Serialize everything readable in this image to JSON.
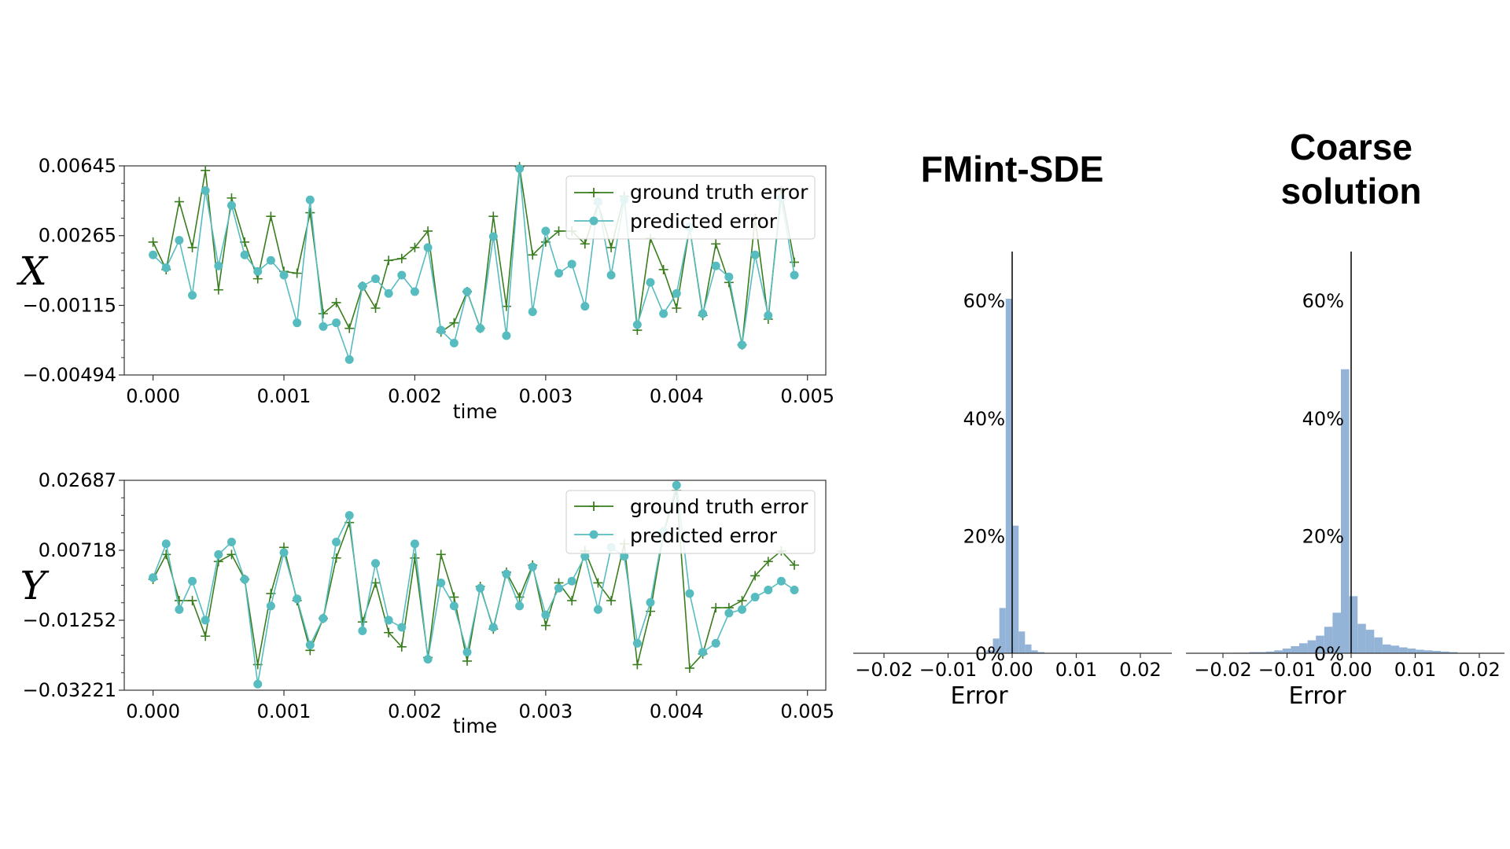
{
  "chart_data": [
    {
      "type": "line",
      "id": "x",
      "var_label": "X",
      "xlabel": "time",
      "ylabel": "",
      "xlim": [
        -0.00022,
        0.00514
      ],
      "ylim": [
        -0.00494,
        0.00645
      ],
      "xticks": [
        {
          "v": 0.0,
          "label": "0.000"
        },
        {
          "v": 0.001,
          "label": "0.001"
        },
        {
          "v": 0.002,
          "label": "0.002"
        },
        {
          "v": 0.003,
          "label": "0.003"
        },
        {
          "v": 0.004,
          "label": "0.004"
        },
        {
          "v": 0.005,
          "label": "0.005"
        }
      ],
      "yticks": [
        {
          "v": 0.00645,
          "label": "0.00645"
        },
        {
          "v": 0.00265,
          "label": "0.00265"
        },
        {
          "v": -0.00115,
          "label": "−0.00115"
        },
        {
          "v": -0.00494,
          "label": "−0.00494"
        }
      ],
      "legend_position": "top-right",
      "series": [
        {
          "name": "ground truth error",
          "marker": "plus",
          "color": "#3a7d1e",
          "values": [
            0.0023,
            0.0008,
            0.0045,
            0.002,
            0.0062,
            -0.0003,
            0.0047,
            0.0023,
            0.0003,
            0.0037,
            0.0007,
            0.0006,
            0.0039,
            -0.0016,
            -0.001,
            -0.0024,
            -0.0001,
            -0.0013,
            0.0013,
            0.0014,
            0.002,
            0.0029,
            -0.0026,
            -0.0021,
            -0.0004,
            -0.0024,
            0.0037,
            -0.0012,
            0.0064,
            0.0016,
            0.0023,
            0.0029,
            0.0029,
            0.0022,
            0.0044,
            0.002,
            0.0048,
            -0.0025,
            0.0025,
            0.0008,
            -0.0013,
            0.0031,
            -0.0017,
            0.0022,
            0.0001,
            -0.0033,
            0.0036,
            -0.0019,
            0.0051,
            0.0012
          ]
        },
        {
          "name": "predicted error",
          "marker": "circle",
          "color": "#57bcbf",
          "values": [
            0.0016,
            0.0009,
            0.0024,
            -0.0006,
            0.0051,
            0.001,
            0.0043,
            0.0016,
            0.0007,
            0.0013,
            0.0005,
            -0.0021,
            0.0046,
            -0.0023,
            -0.0021,
            -0.0041,
            -0.0001,
            0.0003,
            -0.0005,
            0.0005,
            -0.0004,
            0.002,
            -0.0025,
            -0.0032,
            -0.0004,
            -0.0024,
            0.0026,
            -0.0028,
            0.0063,
            -0.0015,
            0.0029,
            0.0006,
            0.0011,
            -0.0012,
            0.0045,
            0.0005,
            0.0046,
            -0.0022,
            0.0001,
            -0.0016,
            -0.0005,
            0.0031,
            -0.0016,
            0.001,
            0.0004,
            -0.0033,
            0.0016,
            -0.0017,
            0.0047,
            0.0005
          ]
        }
      ]
    },
    {
      "type": "line",
      "id": "y",
      "var_label": "Y",
      "xlabel": "time",
      "ylabel": "",
      "xlim": [
        -0.00022,
        0.00514
      ],
      "ylim": [
        -0.03221,
        0.02687
      ],
      "xticks": [
        {
          "v": 0.0,
          "label": "0.000"
        },
        {
          "v": 0.001,
          "label": "0.001"
        },
        {
          "v": 0.002,
          "label": "0.002"
        },
        {
          "v": 0.003,
          "label": "0.003"
        },
        {
          "v": 0.004,
          "label": "0.004"
        },
        {
          "v": 0.005,
          "label": "0.005"
        }
      ],
      "yticks": [
        {
          "v": 0.02687,
          "label": "0.02687"
        },
        {
          "v": 0.00718,
          "label": "0.00718"
        },
        {
          "v": -0.01252,
          "label": "−0.01252"
        },
        {
          "v": -0.03221,
          "label": "−0.03221"
        }
      ],
      "legend_position": "top-right",
      "series": [
        {
          "name": "ground truth error",
          "marker": "plus",
          "color": "#3a7d1e",
          "values": [
            -0.001,
            0.006,
            -0.007,
            -0.007,
            -0.017,
            0.004,
            0.006,
            -0.001,
            -0.025,
            -0.005,
            0.008,
            -0.007,
            -0.021,
            -0.012,
            0.005,
            0.015,
            -0.013,
            -0.002,
            -0.016,
            -0.02,
            0.005,
            -0.023,
            0.006,
            -0.006,
            -0.024,
            -0.003,
            -0.015,
            0.001,
            -0.006,
            0.003,
            -0.014,
            -0.002,
            -0.007,
            0.007,
            -0.002,
            -0.007,
            0.009,
            -0.025,
            -0.01,
            0.012,
            0.024,
            -0.026,
            -0.022,
            -0.009,
            -0.009,
            -0.007,
            0.0,
            0.004,
            0.007,
            0.003
          ]
        },
        {
          "name": "predicted error",
          "marker": "circle",
          "color": "#57bcbf",
          "values": [
            -0.0005,
            0.009,
            -0.0095,
            -0.0015,
            -0.0125,
            0.006,
            0.0095,
            -0.001,
            -0.0305,
            -0.0085,
            0.0065,
            -0.0065,
            -0.0195,
            -0.012,
            0.0095,
            0.017,
            -0.0155,
            0.0035,
            -0.0125,
            -0.0145,
            0.009,
            -0.0235,
            -0.002,
            -0.0085,
            -0.0215,
            -0.0035,
            -0.0145,
            0.0005,
            -0.0085,
            0.0025,
            -0.011,
            -0.0035,
            -0.0015,
            0.0055,
            -0.0095,
            0.008,
            0.0055,
            -0.019,
            -0.0075,
            0.0125,
            0.0255,
            -0.005,
            -0.0215,
            -0.019,
            -0.0105,
            -0.0095,
            -0.006,
            -0.004,
            -0.0015,
            -0.004
          ]
        }
      ]
    },
    {
      "type": "histogram",
      "id": "fmint",
      "title": "FMint-SDE",
      "xlabel": "Error",
      "xlim": [
        -0.025,
        0.025
      ],
      "ylim": [
        0,
        0.68
      ],
      "xticks": [
        {
          "v": -0.02,
          "label": "−0.02"
        },
        {
          "v": -0.01,
          "label": "−0.01"
        },
        {
          "v": 0.0,
          "label": "0.00"
        },
        {
          "v": 0.01,
          "label": "0.01"
        },
        {
          "v": 0.02,
          "label": "0.02"
        }
      ],
      "yticks": [
        {
          "v": 0.0,
          "label": "0%"
        },
        {
          "v": 0.2,
          "label": "20%"
        },
        {
          "v": 0.4,
          "label": "40%"
        },
        {
          "v": 0.6,
          "label": "60%"
        }
      ],
      "bin_width": 0.001,
      "bins": [
        {
          "x0": -0.004,
          "v": 0.005
        },
        {
          "x0": -0.003,
          "v": 0.025
        },
        {
          "x0": -0.002,
          "v": 0.077
        },
        {
          "x0": -0.001,
          "v": 0.603
        },
        {
          "x0": 0.0,
          "v": 0.217
        },
        {
          "x0": 0.001,
          "v": 0.037
        },
        {
          "x0": 0.002,
          "v": 0.015
        },
        {
          "x0": 0.003,
          "v": 0.005
        },
        {
          "x0": 0.004,
          "v": 0.002
        }
      ],
      "color": "#8eb0d5"
    },
    {
      "type": "histogram",
      "id": "coarse",
      "title": "Coarse solution",
      "title_lines": [
        "Coarse",
        "solution"
      ],
      "xlabel": "Error",
      "xlim": [
        -0.025,
        0.025
      ],
      "ylim": [
        0,
        0.68
      ],
      "xticks": [
        {
          "v": -0.02,
          "label": "−0.02"
        },
        {
          "v": -0.01,
          "label": "−0.01"
        },
        {
          "v": 0.0,
          "label": "0.00"
        },
        {
          "v": 0.01,
          "label": "0.01"
        },
        {
          "v": 0.02,
          "label": "0.02"
        }
      ],
      "yticks": [
        {
          "v": 0.0,
          "label": "0%"
        },
        {
          "v": 0.2,
          "label": "20%"
        },
        {
          "v": 0.4,
          "label": "40%"
        },
        {
          "v": 0.6,
          "label": "60%"
        }
      ],
      "bin_width": 0.0013,
      "bins": [
        {
          "x0": -0.0185,
          "v": 0.001
        },
        {
          "x0": -0.0172,
          "v": 0.001
        },
        {
          "x0": -0.0159,
          "v": 0.002
        },
        {
          "x0": -0.0146,
          "v": 0.002
        },
        {
          "x0": -0.0133,
          "v": 0.003
        },
        {
          "x0": -0.012,
          "v": 0.005
        },
        {
          "x0": -0.0107,
          "v": 0.008
        },
        {
          "x0": -0.0094,
          "v": 0.012
        },
        {
          "x0": -0.0081,
          "v": 0.017
        },
        {
          "x0": -0.0068,
          "v": 0.022
        },
        {
          "x0": -0.0055,
          "v": 0.03
        },
        {
          "x0": -0.0042,
          "v": 0.045
        },
        {
          "x0": -0.0029,
          "v": 0.069
        },
        {
          "x0": -0.0016,
          "v": 0.483
        },
        {
          "x0": -0.0003,
          "v": 0.097
        },
        {
          "x0": 0.001,
          "v": 0.05
        },
        {
          "x0": 0.0023,
          "v": 0.04
        },
        {
          "x0": 0.0036,
          "v": 0.027
        },
        {
          "x0": 0.0049,
          "v": 0.015
        },
        {
          "x0": 0.0062,
          "v": 0.013
        },
        {
          "x0": 0.0075,
          "v": 0.01
        },
        {
          "x0": 0.0088,
          "v": 0.008
        },
        {
          "x0": 0.0101,
          "v": 0.006
        },
        {
          "x0": 0.0114,
          "v": 0.005
        },
        {
          "x0": 0.0127,
          "v": 0.004
        },
        {
          "x0": 0.014,
          "v": 0.003
        },
        {
          "x0": 0.0153,
          "v": 0.002
        }
      ],
      "color": "#8eb0d5"
    }
  ]
}
